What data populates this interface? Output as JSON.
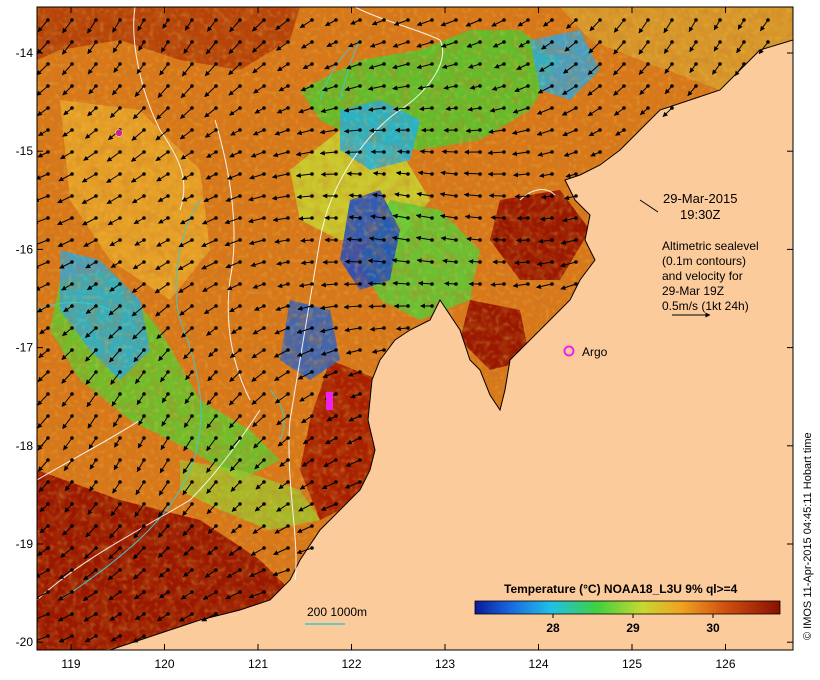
{
  "map": {
    "date": "29-Mar-2015",
    "time": "19:30Z",
    "legend_lines": [
      "Altimetric sealevel",
      "(0.1m contours)",
      "and velocity for",
      "29-Mar 19Z",
      "0.5m/s (1kt 24h)"
    ],
    "argo_label": "Argo",
    "depth_label": "200  1000m",
    "side_credit": "© IMOS 11-Apr-2015 04:45:11 Hobart time",
    "colorbar_title": "Temperature (°C) NOAA18_L3U 9% ql>=4",
    "colorbar_ticks": [
      "28",
      "29",
      "30"
    ],
    "x_ticks": [
      "119",
      "120",
      "121",
      "122",
      "123",
      "124",
      "125",
      "126"
    ],
    "y_ticks": [
      "-14",
      "-15",
      "-16",
      "-17",
      "-18",
      "-19",
      "-20"
    ],
    "colors": {
      "land": "#fccb9c",
      "warm_dark": "#9a1800",
      "warm_mid": "#c85a10",
      "warm_orange": "#e08a20",
      "yellow": "#d8c830",
      "green": "#50d030",
      "cyan": "#20b8e0",
      "blue": "#1030c0",
      "argo": "#ee22ee",
      "contour_white": "#ffffff",
      "contour_cyan": "#40c8c8"
    }
  }
}
